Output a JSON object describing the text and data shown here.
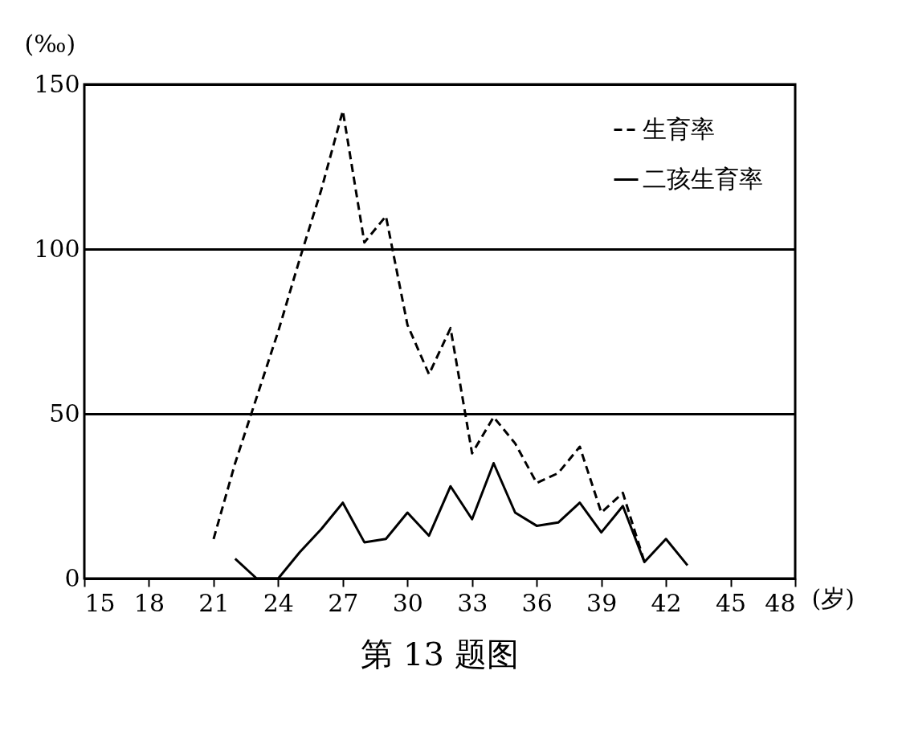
{
  "chart_data": {
    "type": "line",
    "title": "第 13 题图",
    "xlabel": "(岁)",
    "ylabel": "(‰)",
    "xlim": [
      15,
      48
    ],
    "xticks": [
      15,
      18,
      21,
      24,
      27,
      30,
      33,
      36,
      39,
      42,
      45,
      48
    ],
    "ylim": [
      0,
      150
    ],
    "yticks": [
      0,
      50,
      100,
      150
    ],
    "grid": "y",
    "legend": "top right",
    "marker": "none",
    "series": [
      {
        "name": "生育率",
        "color": "#000000",
        "line_style": "dashed",
        "x": [
          21,
          22,
          23,
          24,
          25,
          26,
          27,
          28,
          29,
          30,
          31,
          32,
          33,
          34,
          35,
          36,
          37,
          38,
          39,
          40,
          41
        ],
        "values": [
          12,
          35,
          55,
          75,
          97,
          118,
          142,
          102,
          110,
          77,
          62,
          76,
          38,
          49,
          41,
          29,
          32,
          40,
          20,
          26,
          5
        ]
      },
      {
        "name": "二孩生育率",
        "color": "#000000",
        "line_style": "solid",
        "x": [
          22,
          23,
          24,
          25,
          26,
          27,
          28,
          29,
          30,
          31,
          32,
          33,
          34,
          35,
          36,
          37,
          38,
          39,
          40,
          41,
          42,
          43
        ],
        "values": [
          6,
          0,
          0,
          8,
          15,
          23,
          11,
          12,
          20,
          13,
          28,
          18,
          35,
          20,
          16,
          17,
          23,
          14,
          22,
          5,
          12,
          4
        ]
      }
    ]
  }
}
